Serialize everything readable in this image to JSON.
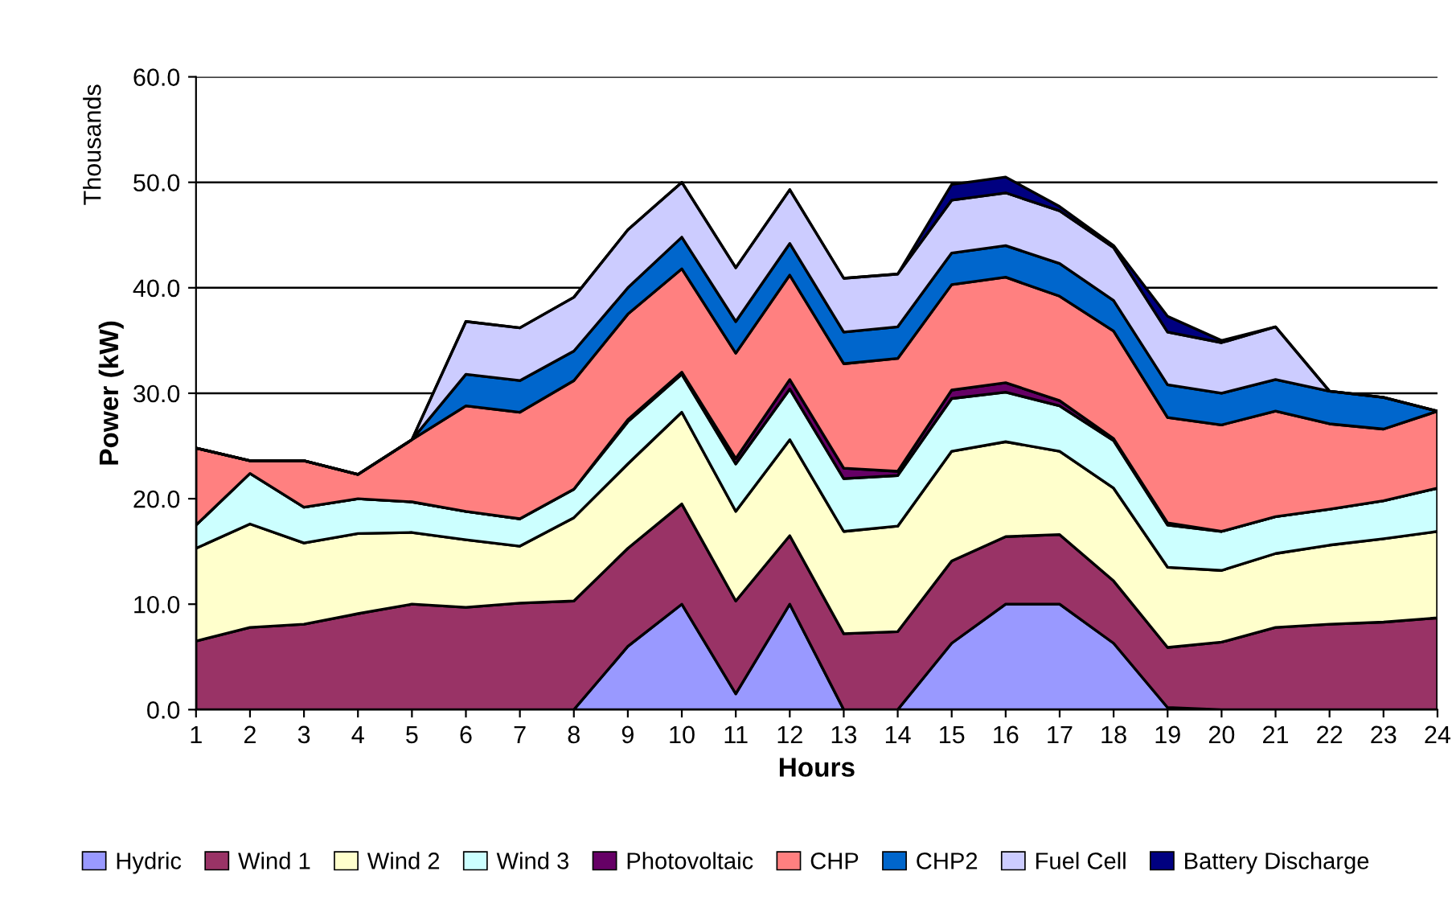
{
  "chart_data": {
    "type": "area",
    "stacked": true,
    "xlabel": "Hours",
    "ylabel": "Power (kW)",
    "annotations": [
      "Thousands"
    ],
    "x": [
      1,
      2,
      3,
      4,
      5,
      6,
      7,
      8,
      9,
      10,
      11,
      12,
      13,
      14,
      15,
      16,
      17,
      18,
      19,
      20,
      21,
      22,
      23,
      24
    ],
    "xlim": [
      1,
      24
    ],
    "xticks": [
      1,
      2,
      3,
      4,
      5,
      6,
      7,
      8,
      9,
      10,
      11,
      12,
      13,
      14,
      15,
      16,
      17,
      18,
      19,
      20,
      21,
      22,
      23,
      24
    ],
    "ylim": [
      0,
      60
    ],
    "yticks": [
      {
        "value": 0,
        "label": "0.0"
      },
      {
        "value": 10,
        "label": "10.0"
      },
      {
        "value": 20,
        "label": "20.0"
      },
      {
        "value": 30,
        "label": "30.0"
      },
      {
        "value": 40,
        "label": "40.0"
      },
      {
        "value": 50,
        "label": "50.0"
      },
      {
        "value": 60,
        "label": "60.0"
      }
    ],
    "grid": "y",
    "legend": "bottom",
    "series": [
      {
        "name": "Hydric",
        "color": "#9999ff",
        "values": [
          0,
          0,
          0,
          0,
          0,
          0,
          0,
          0,
          6,
          10,
          1.5,
          10,
          0,
          0,
          6.3,
          10,
          10,
          6.3,
          0.2,
          0,
          0,
          0,
          0,
          0
        ]
      },
      {
        "name": "Wind 1",
        "color": "#993366",
        "values": [
          6.5,
          7.8,
          8.1,
          9.1,
          10,
          9.7,
          10.1,
          10.3,
          9.3,
          9.5,
          8.8,
          6.5,
          7.2,
          7.4,
          7.8,
          6.4,
          6.6,
          5.9,
          5.7,
          6.4,
          7.8,
          8.1,
          8.3,
          8.7
        ]
      },
      {
        "name": "Wind 2",
        "color": "#ffffcc",
        "values": [
          8.8,
          9.8,
          7.7,
          7.6,
          6.8,
          6.4,
          5.4,
          7.9,
          8.0,
          8.7,
          8.5,
          9.1,
          9.7,
          10.0,
          10.4,
          9.0,
          7.9,
          8.8,
          7.6,
          6.8,
          7.0,
          7.5,
          7.9,
          8.2
        ]
      },
      {
        "name": "Wind 3",
        "color": "#ccffff",
        "values": [
          2.2,
          4.8,
          3.4,
          3.3,
          2.9,
          2.7,
          2.6,
          2.7,
          4.0,
          3.6,
          4.5,
          4.8,
          5.0,
          4.8,
          5.0,
          4.7,
          4.3,
          4.5,
          4.0,
          3.7,
          3.5,
          3.4,
          3.6,
          4.1
        ]
      },
      {
        "name": "Photovoltaic",
        "color": "#660066",
        "values": [
          0,
          0,
          0,
          0,
          0,
          0,
          0,
          0,
          0.2,
          0.2,
          0.5,
          0.9,
          1.0,
          0.4,
          0.8,
          0.9,
          0.5,
          0.2,
          0.2,
          0,
          0,
          0,
          0,
          0
        ]
      },
      {
        "name": "CHP",
        "color": "#ff8080",
        "values": [
          7.3,
          1.2,
          4.4,
          2.3,
          5.9,
          10.0,
          10.1,
          10.3,
          10.0,
          9.8,
          10.0,
          9.9,
          9.9,
          10.7,
          10.0,
          10.0,
          9.9,
          10.2,
          10.0,
          10.1,
          10.0,
          8.1,
          6.8,
          7.3
        ]
      },
      {
        "name": "CHP2",
        "color": "#0066cc",
        "values": [
          0,
          0,
          0,
          0,
          0,
          3.0,
          3.0,
          2.8,
          2.5,
          3.0,
          3.0,
          3.0,
          3.0,
          3.0,
          3.0,
          3.0,
          3.1,
          2.9,
          3.1,
          3.0,
          3.0,
          3.1,
          3.0,
          0
        ]
      },
      {
        "name": "Fuel Cell",
        "color": "#ccccff",
        "values": [
          0,
          0,
          0,
          0,
          0,
          5.0,
          5.0,
          5.1,
          5.5,
          5.2,
          5.1,
          5.1,
          5.1,
          5.0,
          5.0,
          5.0,
          5.0,
          5.0,
          5.0,
          4.8,
          5.0,
          0,
          0,
          0
        ]
      },
      {
        "name": "Battery Discharge",
        "color": "#000080",
        "values": [
          0,
          0,
          0,
          0,
          0,
          0,
          0,
          0,
          0,
          0,
          0,
          0,
          0,
          0,
          1.5,
          1.5,
          0.4,
          0.2,
          1.5,
          0.2,
          0,
          0,
          0,
          0
        ]
      }
    ]
  }
}
